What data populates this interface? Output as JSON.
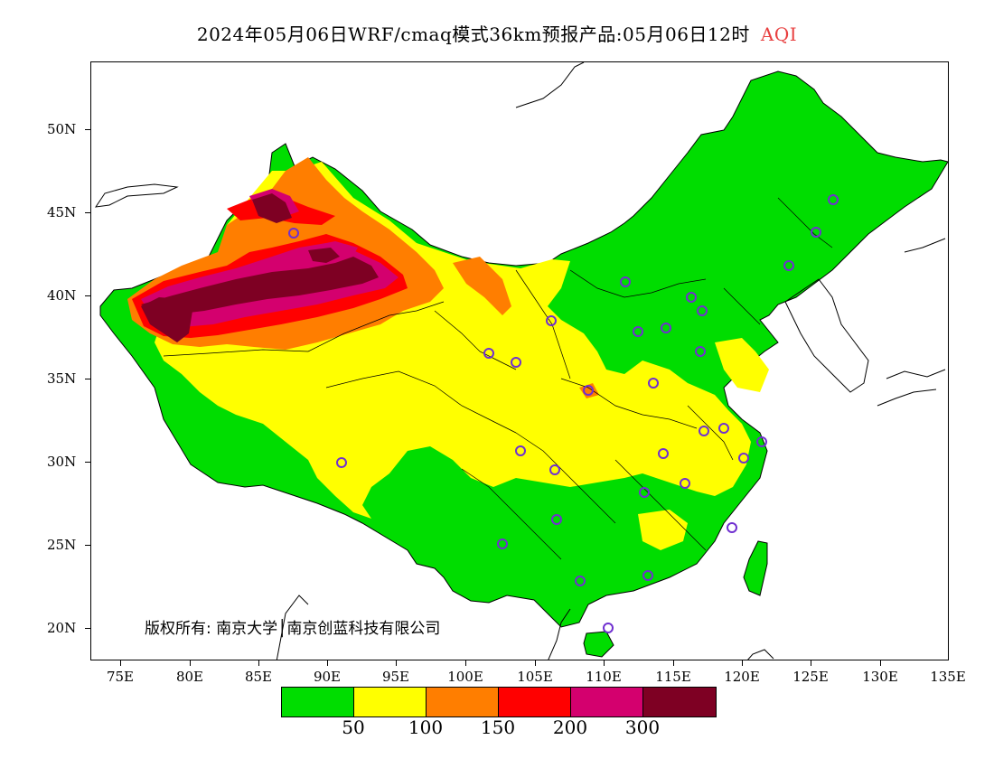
{
  "title": {
    "text": "2024年05月06日WRF/cmaq模式36km预报产品:05月06日12时",
    "variable": "AQI",
    "variable_color": "#e84040"
  },
  "copyright": "版权所有: 南京大学│南京创蓝科技有限公司",
  "lat_labels": [
    "50N",
    "45N",
    "40N",
    "35N",
    "30N",
    "25N",
    "20N"
  ],
  "lon_labels": [
    "75E",
    "80E",
    "85E",
    "90E",
    "95E",
    "100E",
    "105E",
    "110E",
    "115E",
    "120E",
    "125E",
    "130E",
    "135E"
  ],
  "legend": {
    "colors": [
      "#00dd00",
      "#ffff00",
      "#ff7e00",
      "#ff0000",
      "#d4006e",
      "#7e0023"
    ],
    "labels": [
      "50",
      "100",
      "150",
      "200",
      "300"
    ]
  },
  "palette": {
    "land": "#00dd00",
    "moderate": "#ffff00",
    "sensitive": "#ff7e00",
    "unhealthy": "#ff0000",
    "very_unhealthy": "#d4006e",
    "hazardous": "#7e0023",
    "station_ring": "#7030d0"
  }
}
